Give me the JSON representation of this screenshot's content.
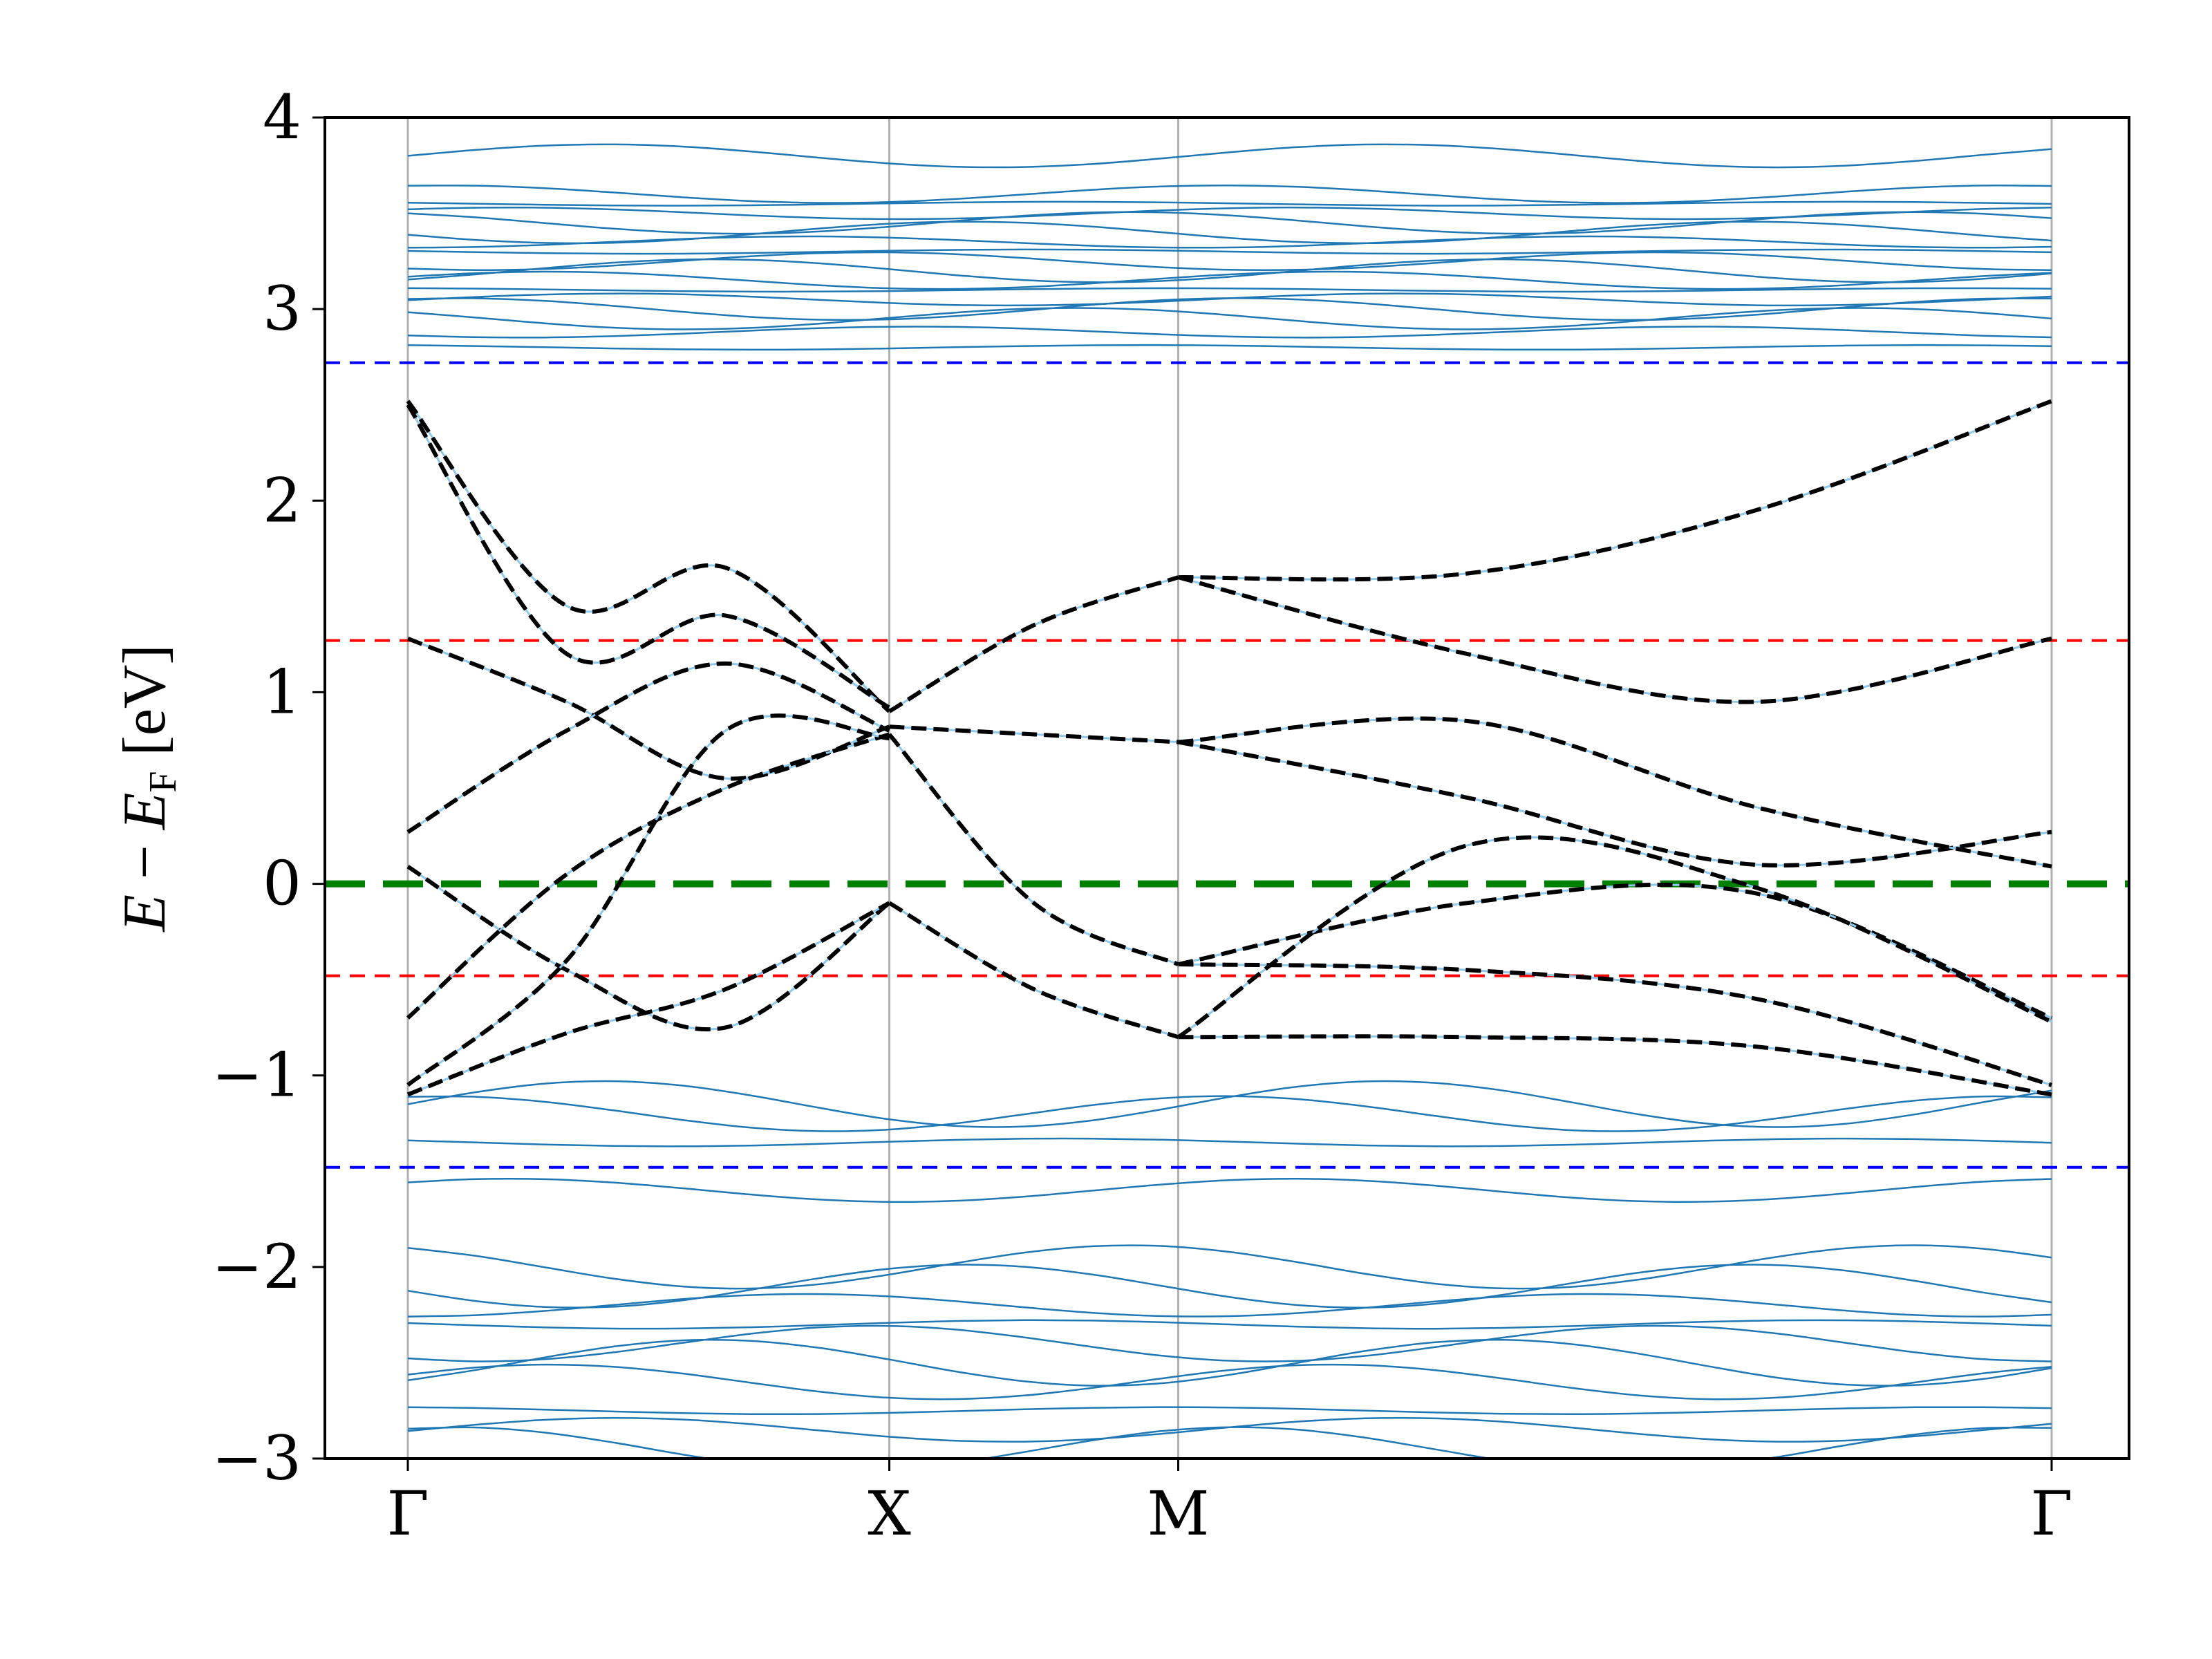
{
  "chart_data": {
    "type": "line",
    "title": "",
    "ylabel": {
      "E": "E",
      "minus": " − ",
      "EF": "E",
      "EF_sub": "F",
      "unit": " [eV]"
    },
    "xlabel": "",
    "ylim": [
      -3,
      4
    ],
    "x_range": [
      0,
      3.414
    ],
    "yticks": [
      {
        "value": 4,
        "label": "4"
      },
      {
        "value": 3,
        "label": "3"
      },
      {
        "value": 2,
        "label": "2"
      },
      {
        "value": 1,
        "label": "1"
      },
      {
        "value": 0,
        "label": "0"
      },
      {
        "value": -1,
        "label": "−1"
      },
      {
        "value": -2,
        "label": "−2"
      },
      {
        "value": -3,
        "label": "−3"
      }
    ],
    "kpoints": [
      {
        "label": "Γ",
        "x": 0
      },
      {
        "label": "X",
        "x": 1.0
      },
      {
        "label": "M",
        "x": 1.6
      },
      {
        "label": "Γ",
        "x": 3.414
      }
    ],
    "reference_lines": [
      {
        "y": 2.72,
        "color": "#0000ff",
        "style": "dashed"
      },
      {
        "y": 1.27,
        "color": "#ff0000",
        "style": "dashed"
      },
      {
        "y": 0.0,
        "color": "#008000",
        "style": "dashed-thick"
      },
      {
        "y": -0.48,
        "color": "#ff0000",
        "style": "dashed"
      },
      {
        "y": -1.48,
        "color": "#0000ff",
        "style": "dashed"
      }
    ],
    "colors": {
      "dft": "#1f77b4",
      "wannier": "#000000",
      "kpath_line": "#b0b0b0"
    },
    "wannier_bands": [
      [
        2.52,
        1.45,
        1.65,
        0.9
      ],
      [
        2.5,
        1.2,
        1.4,
        0.92
      ],
      [
        1.28,
        0.95,
        0.55,
        0.82
      ],
      [
        0.27,
        0.8,
        1.15,
        0.8
      ],
      [
        0.09,
        -0.45,
        -0.75,
        -0.1
      ],
      [
        -0.7,
        0.05,
        0.5,
        0.78
      ],
      [
        -1.05,
        -0.4,
        0.8,
        0.76
      ],
      [
        -1.1,
        -0.78,
        -0.55,
        -0.1
      ]
    ],
    "wannier_bands_segment2": [
      [
        0.9,
        1.35,
        1.6
      ],
      [
        0.82,
        0.78,
        0.74
      ],
      [
        0.78,
        -0.1,
        -0.42
      ],
      [
        -0.1,
        -0.55,
        -0.8
      ]
    ],
    "wannier_bands_segment3": [
      [
        1.6,
        1.62,
        1.95,
        2.52
      ],
      [
        1.6,
        1.2,
        0.95,
        1.28
      ],
      [
        0.74,
        0.45,
        0.1,
        0.27
      ],
      [
        0.74,
        0.85,
        0.4,
        0.09
      ],
      [
        -0.42,
        -0.1,
        -0.05,
        -0.7
      ],
      [
        -0.42,
        -0.45,
        -0.6,
        -1.05
      ],
      [
        -0.8,
        -0.8,
        -0.85,
        -1.1
      ],
      [
        -0.8,
        0.2,
        -0.02,
        -0.72
      ]
    ],
    "dft_bands_upper": [
      3.8,
      3.6,
      3.55,
      3.5,
      3.45,
      3.4,
      3.35,
      3.3,
      3.25,
      3.2,
      3.15,
      3.1,
      3.05,
      3.0,
      2.95,
      2.88,
      2.8
    ],
    "dft_bands_lower": [
      -1.15,
      -1.2,
      -1.35,
      -1.6,
      -2.0,
      -2.1,
      -2.2,
      -2.3,
      -2.4,
      -2.5,
      -2.6,
      -2.75,
      -2.85,
      -2.95
    ]
  }
}
